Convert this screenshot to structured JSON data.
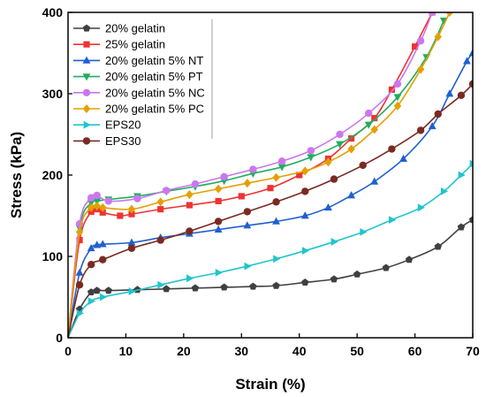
{
  "chart_data": {
    "type": "line",
    "xlabel": "Strain (%)",
    "ylabel": "Stress (kPa)",
    "xlim": [
      0,
      70
    ],
    "ylim": [
      0,
      400
    ],
    "xticks": [
      0,
      10,
      20,
      30,
      40,
      50,
      60,
      70
    ],
    "yticks": [
      0,
      100,
      200,
      300,
      400
    ],
    "grid": false,
    "legend_position": "top-left",
    "series": [
      {
        "name": "20% gelatin",
        "color": "#404040",
        "marker": "pentagon",
        "x": [
          0,
          2,
          4,
          5,
          7,
          12,
          17,
          22,
          27,
          32,
          36,
          41,
          46,
          50,
          55,
          59,
          64,
          68,
          70
        ],
        "y": [
          0,
          35,
          56,
          58,
          58,
          59,
          60,
          61,
          62,
          63,
          64,
          68,
          72,
          78,
          86,
          96,
          112,
          136,
          145
        ]
      },
      {
        "name": "25% gelatin",
        "color": "#ee3333",
        "marker": "square",
        "x": [
          0,
          2,
          4,
          5,
          6,
          9,
          11,
          16,
          21,
          26,
          30,
          35,
          40,
          45,
          49,
          53,
          56,
          60,
          63
        ],
        "y": [
          0,
          120,
          155,
          158,
          154,
          150,
          152,
          158,
          163,
          168,
          174,
          184,
          200,
          220,
          245,
          270,
          305,
          358,
          400
        ]
      },
      {
        "name": "20% gelatin 5% NT",
        "color": "#1f5fd0",
        "marker": "triangle-up",
        "x": [
          0,
          2,
          4,
          5,
          6,
          11,
          16,
          21,
          26,
          31,
          36,
          41,
          45,
          49,
          53,
          58,
          63,
          66,
          69,
          70
        ],
        "y": [
          0,
          80,
          110,
          114,
          115,
          117,
          123,
          128,
          133,
          138,
          143,
          150,
          160,
          175,
          192,
          220,
          260,
          300,
          340,
          350
        ]
      },
      {
        "name": "20% gelatin 5% PT",
        "color": "#1fae5f",
        "marker": "triangle-down",
        "x": [
          0,
          2,
          4,
          5,
          7,
          12,
          17,
          22,
          27,
          32,
          37,
          42,
          47,
          52,
          57,
          62,
          65
        ],
        "y": [
          0,
          135,
          166,
          168,
          170,
          174,
          180,
          186,
          193,
          202,
          210,
          222,
          238,
          262,
          296,
          345,
          390
        ]
      },
      {
        "name": "20% gelatin 5% NC",
        "color": "#cc77ee",
        "marker": "circle",
        "x": [
          0,
          2,
          4,
          5,
          7,
          12,
          17,
          22,
          27,
          32,
          37,
          42,
          47,
          52,
          57,
          61,
          63
        ],
        "y": [
          0,
          140,
          172,
          175,
          168,
          171,
          181,
          189,
          198,
          207,
          217,
          230,
          250,
          276,
          312,
          365,
          400
        ]
      },
      {
        "name": "20% gelatin 5% PC",
        "color": "#e3a000",
        "marker": "diamond",
        "x": [
          0,
          2,
          4,
          5,
          6,
          11,
          16,
          21,
          26,
          31,
          36,
          41,
          45,
          49,
          53,
          57,
          61,
          64,
          66
        ],
        "y": [
          0,
          130,
          160,
          162,
          160,
          158,
          167,
          176,
          183,
          190,
          197,
          205,
          216,
          232,
          256,
          285,
          330,
          370,
          400
        ]
      },
      {
        "name": "EPS20",
        "color": "#22c4cc",
        "marker": "triangle-right",
        "x": [
          0,
          2,
          4,
          6,
          11,
          16,
          21,
          26,
          31,
          36,
          41,
          46,
          51,
          56,
          61,
          65,
          68,
          70
        ],
        "y": [
          0,
          30,
          45,
          50,
          57,
          65,
          73,
          80,
          88,
          97,
          107,
          118,
          130,
          145,
          160,
          180,
          200,
          214
        ]
      },
      {
        "name": "EPS30",
        "color": "#7a2a22",
        "marker": "circle",
        "x": [
          0,
          2,
          4,
          6,
          11,
          16,
          21,
          26,
          31,
          36,
          41,
          46,
          51,
          56,
          61,
          64,
          68,
          70
        ],
        "y": [
          0,
          65,
          90,
          96,
          110,
          120,
          131,
          143,
          155,
          167,
          180,
          195,
          212,
          232,
          255,
          275,
          298,
          312
        ]
      }
    ]
  }
}
